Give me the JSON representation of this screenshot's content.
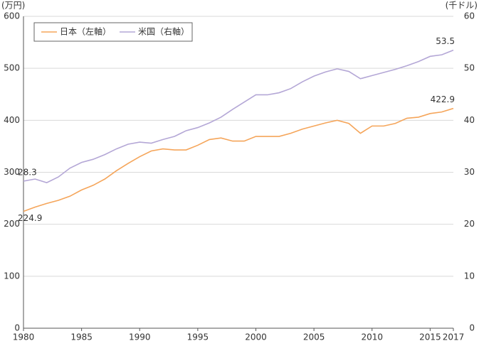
{
  "chart_data": {
    "type": "line",
    "y_label": "(万円)",
    "y2_label": "(千ドル)",
    "x": [
      1980,
      1981,
      1982,
      1983,
      1984,
      1985,
      1986,
      1987,
      1988,
      1989,
      1990,
      1991,
      1992,
      1993,
      1994,
      1995,
      1996,
      1997,
      1998,
      1999,
      2000,
      2001,
      2002,
      2003,
      2004,
      2005,
      2006,
      2007,
      2008,
      2009,
      2010,
      2011,
      2012,
      2013,
      2014,
      2015,
      2016,
      2017
    ],
    "series": [
      {
        "name": "日本（左軸）",
        "color": "#f5a55a",
        "labeled": [
          0,
          37
        ],
        "values": [
          224.9,
          233,
          240,
          246,
          254,
          266,
          275,
          287,
          303,
          317,
          330,
          341,
          345,
          343,
          343,
          352,
          363,
          366,
          360,
          360,
          369,
          369,
          369,
          375,
          383,
          389,
          395,
          400,
          394,
          375,
          389,
          389,
          394,
          404,
          406,
          413,
          416,
          422.9
        ]
      },
      {
        "name": "米国（右軸）",
        "color": "#b4a7d6",
        "axis": "y2",
        "labeled": [
          0,
          37
        ],
        "values": [
          28.3,
          28.7,
          28.0,
          29.1,
          30.8,
          31.9,
          32.5,
          33.4,
          34.5,
          35.4,
          35.8,
          35.6,
          36.3,
          36.9,
          38.0,
          38.6,
          39.5,
          40.6,
          42.1,
          43.5,
          44.9,
          44.9,
          45.3,
          46.1,
          47.4,
          48.5,
          49.3,
          49.9,
          49.4,
          48.0,
          48.6,
          49.2,
          49.8,
          50.5,
          51.3,
          52.3,
          52.6,
          53.5
        ]
      }
    ],
    "xlim": [
      1980,
      2017
    ],
    "xticks": [
      1980,
      1985,
      1990,
      1995,
      2000,
      2005,
      2010,
      2015,
      2017
    ],
    "ylim": [
      0,
      600
    ],
    "yticks": [
      0,
      100,
      200,
      300,
      400,
      500,
      600
    ],
    "y2lim": [
      0,
      60
    ],
    "y2ticks": [
      0,
      10,
      20,
      30,
      40,
      50,
      60
    ],
    "grid": true,
    "legend": "top-left"
  }
}
